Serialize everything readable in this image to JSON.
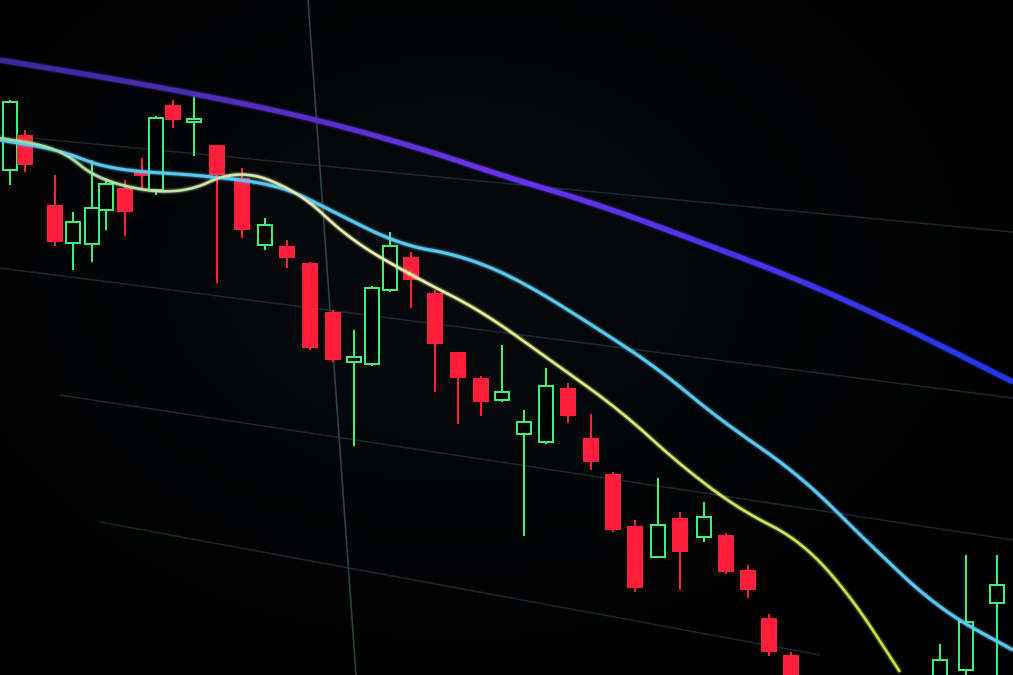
{
  "scene": {
    "subject": "candlestick-chart-on-screen",
    "colors": {
      "background": "#000000",
      "bearish_candle": "#ff1f3a",
      "bullish_candle": "#3cf07a",
      "moving_average_slow": "#4a32e0",
      "moving_average_mid": "#5ac8f0",
      "moving_average_fast": "#e8e890",
      "grid": "#1c3440"
    }
  }
}
